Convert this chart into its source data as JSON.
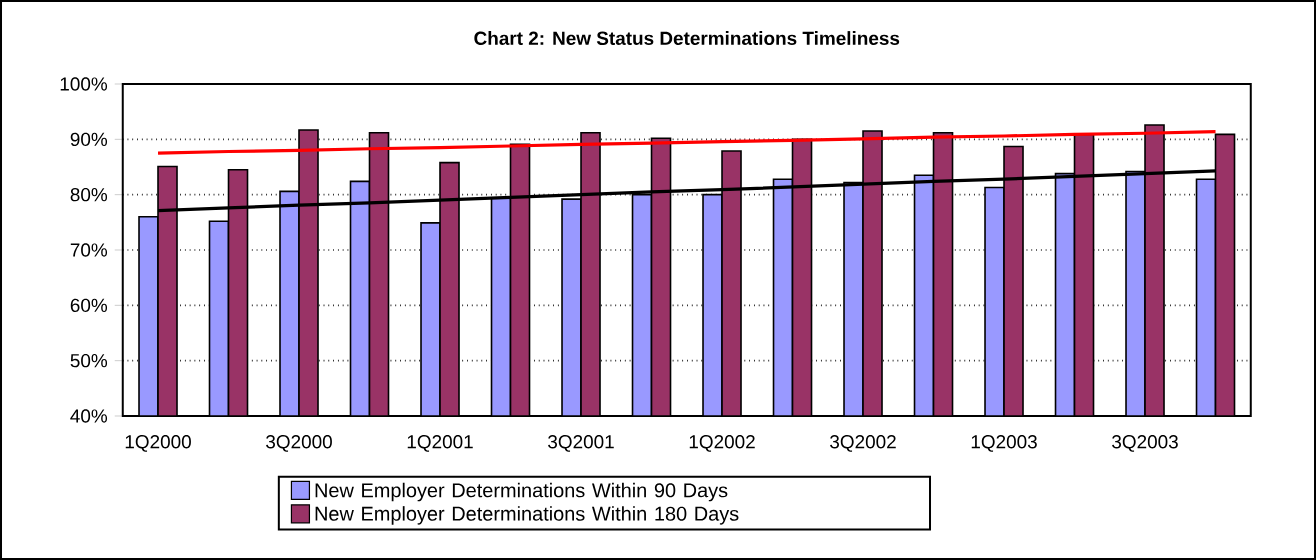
{
  "chart_data": {
    "type": "bar",
    "title": "Chart 2: New Status Determinations Timeliness",
    "categories": [
      "1Q2000",
      null,
      "3Q2000",
      null,
      "1Q2001",
      null,
      "3Q2001",
      null,
      "1Q2002",
      null,
      "3Q2002",
      null,
      "1Q2003",
      null,
      "3Q2003",
      null
    ],
    "series": [
      {
        "name": "New Employer Determinations Within 90 Days",
        "color": "#9999ff",
        "values": [
          76,
          75.2,
          80.6,
          82.4,
          74.9,
          79.4,
          79.2,
          80,
          80,
          82.8,
          82.2,
          83.5,
          81.3,
          83.8,
          84.2,
          82.8
        ]
      },
      {
        "name": "New Employer Determinations Within 180 Days",
        "color": "#993366",
        "values": [
          85.1,
          84.5,
          91.7,
          91.2,
          85.8,
          89.1,
          91.2,
          90.2,
          87.9,
          90,
          91.5,
          91.2,
          88.7,
          90.9,
          92.6,
          90.9
        ]
      },
      {
        "type": "line",
        "color": "#ff0000",
        "values": [
          87.5,
          87.8,
          88.0,
          88.3,
          88.5,
          88.8,
          89.1,
          89.3,
          89.6,
          89.8,
          90.1,
          90.4,
          90.6,
          90.9,
          91.1,
          91.4
        ]
      },
      {
        "type": "line",
        "color": "#000000",
        "values": [
          77.1,
          77.6,
          78.1,
          78.5,
          79.0,
          79.5,
          80.0,
          80.5,
          80.9,
          81.4,
          81.9,
          82.4,
          82.8,
          83.3,
          83.8,
          84.3
        ]
      }
    ],
    "ylim": [
      40,
      100
    ],
    "yticks": [
      {
        "value": 40,
        "label": "40%"
      },
      {
        "value": 50,
        "label": "50%"
      },
      {
        "value": 60,
        "label": "60%"
      },
      {
        "value": 70,
        "label": "70%"
      },
      {
        "value": 80,
        "label": "80%"
      },
      {
        "value": 90,
        "label": "90%"
      },
      {
        "value": 100,
        "label": "100%"
      }
    ],
    "grid": "y",
    "legend": "bottom"
  }
}
